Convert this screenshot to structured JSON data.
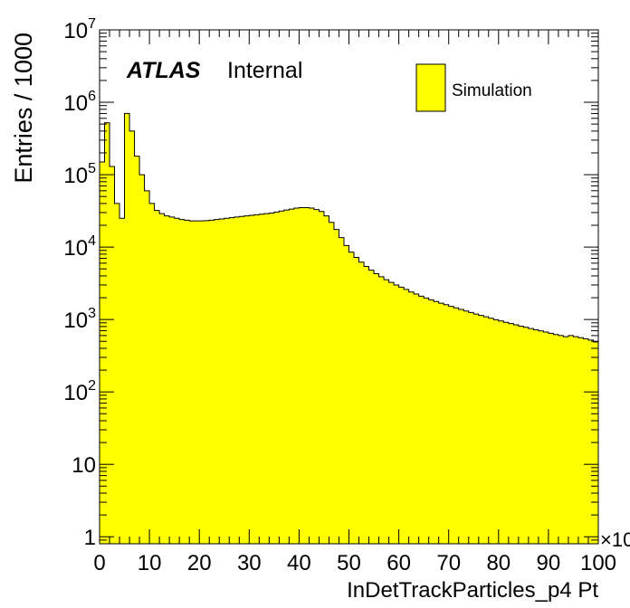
{
  "chart_data": {
    "type": "histogram",
    "title": "",
    "xlabel": "InDetTrackParticles_p4 Pt",
    "ylabel": "Entries / 1000",
    "x_multiplier_label": "×10",
    "xlim": [
      0,
      100
    ],
    "ylim": [
      0.8,
      10000000
    ],
    "yscale": "log",
    "x_ticks": [
      "0",
      "10",
      "20",
      "30",
      "40",
      "50",
      "60",
      "70",
      "80",
      "90",
      "100"
    ],
    "y_ticks": [
      {
        "base": "1",
        "exp": ""
      },
      {
        "base": "10",
        "exp": ""
      },
      {
        "base": "10",
        "exp": "2"
      },
      {
        "base": "10",
        "exp": "3"
      },
      {
        "base": "10",
        "exp": "4"
      },
      {
        "base": "10",
        "exp": "5"
      },
      {
        "base": "10",
        "exp": "6"
      },
      {
        "base": "10",
        "exp": "7"
      }
    ],
    "bin_width": 1,
    "series": [
      {
        "name": "Simulation",
        "color": "#ffff00",
        "values": [
          150000,
          520000,
          130000,
          40000,
          25000,
          700000,
          400000,
          180000,
          100000,
          60000,
          40000,
          32000,
          29000,
          27000,
          26000,
          25000,
          24000,
          23500,
          23000,
          23000,
          23000,
          23200,
          23500,
          24000,
          24500,
          25000,
          25500,
          26000,
          26500,
          27000,
          27500,
          28000,
          28500,
          29000,
          29500,
          30500,
          31500,
          32500,
          33500,
          34500,
          35000,
          35000,
          34500,
          33000,
          31000,
          27000,
          22000,
          17500,
          13500,
          10500,
          8500,
          7200,
          6200,
          5400,
          4800,
          4300,
          3900,
          3550,
          3250,
          3000,
          2800,
          2600,
          2400,
          2250,
          2100,
          1980,
          1870,
          1770,
          1680,
          1600,
          1520,
          1450,
          1380,
          1310,
          1250,
          1190,
          1140,
          1090,
          1040,
          995,
          955,
          915,
          880,
          845,
          810,
          780,
          750,
          720,
          695,
          670,
          645,
          620,
          600,
          580,
          600,
          580,
          560,
          540,
          520,
          490
        ]
      }
    ],
    "legend": [
      {
        "label": "Simulation",
        "color": "#ffff00"
      }
    ],
    "legend_position": "top-right",
    "annotations": {
      "atlas": "ATLAS",
      "status": "Internal"
    },
    "grid": false
  }
}
